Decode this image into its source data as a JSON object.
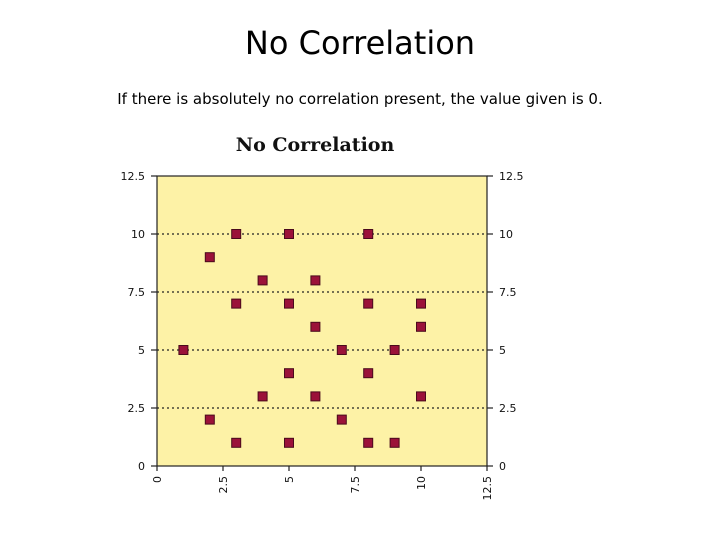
{
  "slide": {
    "title": "No Correlation",
    "body": "If there is absolutely no correlation present, the value given is 0."
  },
  "colors": {
    "plot_background": "#fdf2a6",
    "marker_fill": "#9b1239",
    "marker_stroke": "#4a0a1c",
    "gridline": "#222222"
  },
  "chart_data": {
    "type": "scatter",
    "title": "No Correlation",
    "xlabel": "",
    "ylabel": "",
    "xlim": [
      0,
      12.5
    ],
    "ylim": [
      0,
      12.5
    ],
    "x_ticks": [
      "0",
      "2.5",
      "5",
      "7.5",
      "10",
      "12.5"
    ],
    "y_ticks": [
      "0",
      "2.5",
      "5",
      "7.5",
      "10",
      "12.5"
    ],
    "grid": "horizontal dotted",
    "legend": "none",
    "marker": "square",
    "points": [
      {
        "x": 1,
        "y": 5
      },
      {
        "x": 2,
        "y": 9
      },
      {
        "x": 2,
        "y": 2
      },
      {
        "x": 3,
        "y": 10
      },
      {
        "x": 3,
        "y": 7
      },
      {
        "x": 3,
        "y": 1
      },
      {
        "x": 4,
        "y": 8
      },
      {
        "x": 4,
        "y": 3
      },
      {
        "x": 5,
        "y": 10
      },
      {
        "x": 5,
        "y": 7
      },
      {
        "x": 5,
        "y": 4
      },
      {
        "x": 5,
        "y": 1
      },
      {
        "x": 6,
        "y": 8
      },
      {
        "x": 6,
        "y": 6
      },
      {
        "x": 6,
        "y": 3
      },
      {
        "x": 7,
        "y": 5
      },
      {
        "x": 7,
        "y": 2
      },
      {
        "x": 8,
        "y": 10
      },
      {
        "x": 8,
        "y": 7
      },
      {
        "x": 8,
        "y": 4
      },
      {
        "x": 8,
        "y": 1
      },
      {
        "x": 9,
        "y": 5
      },
      {
        "x": 9,
        "y": 1
      },
      {
        "x": 10,
        "y": 7
      },
      {
        "x": 10,
        "y": 6
      },
      {
        "x": 10,
        "y": 3
      }
    ]
  }
}
